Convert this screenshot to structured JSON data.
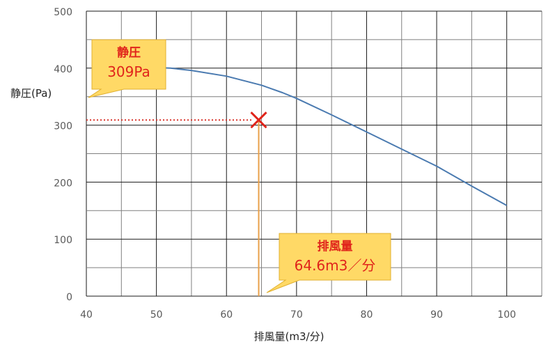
{
  "chart_data": {
    "type": "line",
    "xlabel": "排風量(m3/分)",
    "ylabel": "静圧(Pa)",
    "xlim": [
      40,
      105
    ],
    "ylim": [
      0,
      500
    ],
    "x_ticks": [
      40,
      50,
      60,
      70,
      80,
      90,
      100
    ],
    "y_ticks": [
      0,
      100,
      200,
      300,
      400,
      500
    ],
    "grid": true,
    "series": [
      {
        "color": "#4a7ab0",
        "x": [
          50,
          52,
          55,
          60,
          65,
          68,
          70,
          75,
          80,
          85,
          90,
          95,
          100
        ],
        "y": [
          401,
          400,
          396,
          386,
          370,
          357,
          347,
          318,
          288,
          258,
          228,
          193,
          159
        ]
      }
    ],
    "operating_point": {
      "x": 64.6,
      "y": 309
    },
    "annotations": {
      "static_pressure": {
        "title": "静圧",
        "value": "309Pa"
      },
      "airflow": {
        "title": "排風量",
        "value": "64.6m3／分"
      }
    },
    "colors": {
      "marker": "#e0241b",
      "horizontal_guide": "#d9342b",
      "vertical_guide": "#e8a04a",
      "callout_fill": "#ffd966",
      "callout_stroke": "#e0b030"
    }
  }
}
